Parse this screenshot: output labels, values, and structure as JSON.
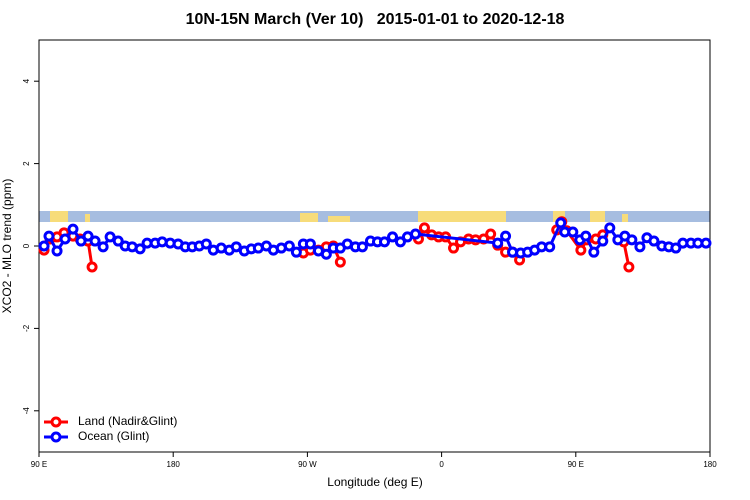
{
  "chart_data": {
    "type": "line",
    "title": "10N-15N March (Ver 10)   2015-01-01 to 2020-12-18",
    "x_label": "Longitude (deg E)",
    "y_label": "XCO2 - MLO trend (ppm)",
    "xlim": [
      90,
      540
    ],
    "xticks": [
      {
        "value": 90,
        "label": "90 E"
      },
      180,
      {
        "value": 270,
        "label": "90 W"
      },
      {
        "value": 360,
        "label": "0"
      },
      {
        "value": 450,
        "label": "90 E"
      },
      {
        "value": 540,
        "label": "180"
      }
    ],
    "ylim": [
      -5,
      5
    ],
    "yticks": [
      -4,
      -2,
      0,
      2,
      4
    ],
    "legend": "bottom-left",
    "series": [
      {
        "name": "Land (Nadir&Glint)",
        "color": "#ff0000",
        "x": [
          93.4,
          97.4,
          102.1,
          106.8,
          112.8,
          117.5,
          122.9,
          125.6,
          null,
          267.3,
          272.0,
          277.4,
          282.7,
          287.4,
          292.1,
          null,
          344.5,
          348.5,
          353.3,
          358.0,
          362.7,
          368.0,
          372.7,
          378.1,
          382.8,
          388.2,
          392.9,
          397.6,
          402.9,
          407.6,
          412.3,
          null,
          437.2,
          440.6,
          443.9,
          453.4,
          457.4,
          463.4,
          468.1,
          null,
          482.2,
          485.6
        ],
        "values": [
          -0.1,
          0.17,
          0.22,
          0.32,
          0.24,
          0.17,
          0.12,
          -0.51,
          null,
          -0.17,
          -0.1,
          -0.1,
          -0.02,
          0.0,
          -0.39,
          null,
          0.17,
          0.44,
          0.27,
          0.22,
          0.22,
          -0.05,
          0.1,
          0.17,
          0.15,
          0.17,
          0.29,
          0.02,
          -0.15,
          -0.15,
          -0.34,
          null,
          0.39,
          0.59,
          0.37,
          -0.1,
          0.15,
          0.17,
          0.27,
          null,
          0.1,
          -0.51
        ]
      },
      {
        "name": "Ocean (Glint)",
        "color": "#0000ff",
        "x": [
          93.4,
          96.7,
          102.1,
          107.5,
          112.8,
          118.2,
          122.9,
          127.6,
          133.0,
          137.7,
          143.1,
          147.8,
          152.5,
          157.8,
          162.5,
          167.9,
          172.6,
          178.0,
          183.3,
          188.1,
          192.8,
          197.5,
          202.2,
          206.9,
          212.2,
          217.6,
          222.3,
          227.7,
          232.4,
          237.1,
          242.5,
          247.2,
          252.5,
          257.9,
          262.6,
          267.3,
          272.0,
          277.4,
          282.7,
          287.4,
          292.1,
          296.8,
          302.2,
          306.9,
          312.3,
          317.0,
          321.7,
          327.1,
          332.4,
          337.1,
          342.5,
          397.6,
          402.9,
          407.6,
          413.0,
          417.7,
          422.4,
          427.1,
          432.5,
          439.9,
          442.6,
          448.0,
          452.7,
          456.7,
          462.1,
          468.1,
          472.8,
          478.2,
          482.9,
          487.6,
          493.0,
          497.7,
          502.4,
          507.7,
          512.4,
          517.1,
          521.8,
          527.2,
          531.9,
          537.3
        ],
        "values": [
          0.0,
          0.24,
          -0.12,
          0.17,
          0.41,
          0.12,
          0.24,
          0.12,
          -0.02,
          0.22,
          0.12,
          0.0,
          -0.02,
          -0.07,
          0.07,
          0.07,
          0.1,
          0.07,
          0.05,
          -0.02,
          -0.02,
          0.0,
          0.05,
          -0.1,
          -0.05,
          -0.1,
          -0.02,
          -0.12,
          -0.07,
          -0.05,
          0.0,
          -0.1,
          -0.05,
          0.0,
          -0.15,
          0.05,
          0.05,
          -0.12,
          -0.2,
          -0.05,
          -0.05,
          0.05,
          -0.02,
          -0.02,
          0.12,
          0.1,
          0.1,
          0.22,
          0.1,
          0.22,
          0.29,
          0.07,
          0.24,
          -0.15,
          -0.17,
          -0.15,
          -0.1,
          -0.02,
          -0.02,
          0.56,
          0.34,
          0.34,
          0.15,
          0.24,
          -0.15,
          0.12,
          0.44,
          0.15,
          0.24,
          0.15,
          -0.02,
          0.2,
          0.12,
          0.0,
          -0.02,
          -0.05,
          0.07,
          0.07,
          0.07,
          0.07
        ]
      }
    ]
  }
}
